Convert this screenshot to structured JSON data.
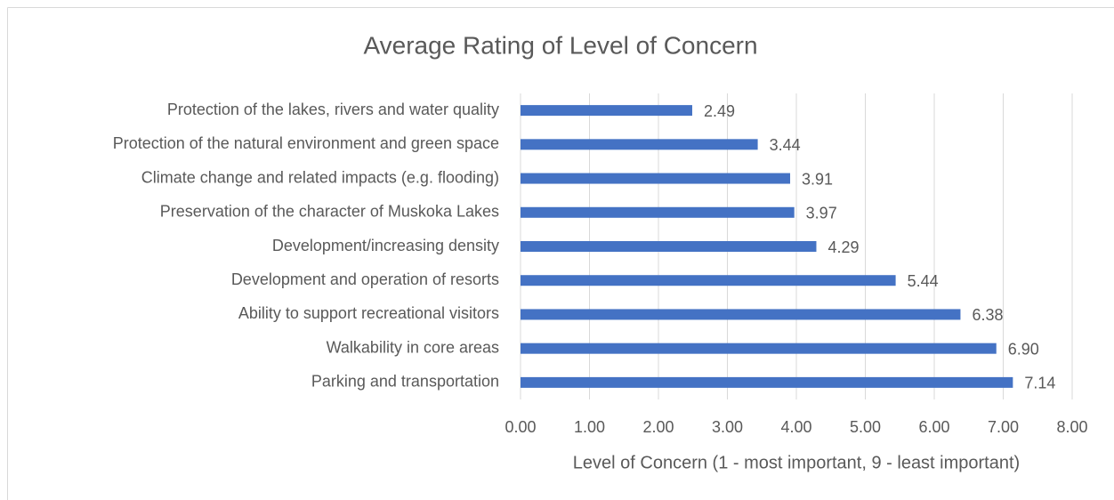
{
  "chart_data": {
    "type": "hbar",
    "title": "Average Rating of Level of Concern",
    "x_label": "Level of Concern (1 - most important, 9 - least important)",
    "categories": [
      "Protection of the lakes, rivers and water quality",
      "Protection of the natural environment and green space",
      "Climate change and related impacts (e.g. flooding)",
      "Preservation of the character of Muskoka Lakes",
      "Development/increasing density",
      "Development and operation of resorts",
      "Ability to support recreational visitors",
      "Walkability in core areas",
      "Parking and transportation"
    ],
    "values": [
      2.49,
      3.44,
      3.91,
      3.97,
      4.29,
      5.44,
      6.38,
      6.9,
      7.14
    ],
    "value_labels": [
      "2.49",
      "3.44",
      "3.91",
      "3.97",
      "4.29",
      "5.44",
      "6.38",
      "6.90",
      "7.14"
    ],
    "color": "#4472c4",
    "xlim": [
      0,
      8
    ],
    "xticks": [
      {
        "value": 0,
        "label": "0.00"
      },
      {
        "value": 1,
        "label": "1.00"
      },
      {
        "value": 2,
        "label": "2.00"
      },
      {
        "value": 3,
        "label": "3.00"
      },
      {
        "value": 4,
        "label": "4.00"
      },
      {
        "value": 5,
        "label": "5.00"
      },
      {
        "value": 6,
        "label": "6.00"
      },
      {
        "value": 7,
        "label": "7.00"
      },
      {
        "value": 8,
        "label": "8.00"
      }
    ],
    "grid": true
  }
}
